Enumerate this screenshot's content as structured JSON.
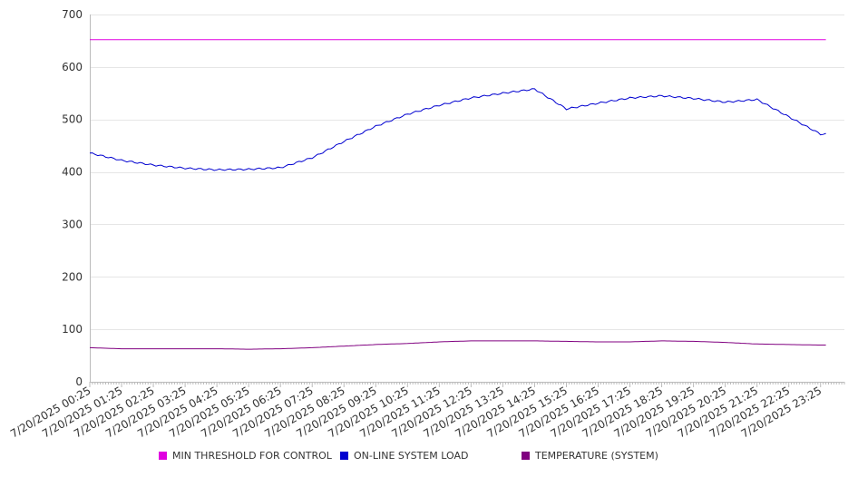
{
  "chart_data": {
    "type": "line",
    "title": "",
    "xlabel": "",
    "ylabel": "",
    "ylim": [
      0,
      700
    ],
    "yticks": [
      0,
      100,
      200,
      300,
      400,
      500,
      600,
      700
    ],
    "grid": "horizontal",
    "legend_position": "bottom",
    "x": [
      "7/20/2025 00:25",
      "7/20/2025 01:25",
      "7/20/2025 02:25",
      "7/20/2025 03:25",
      "7/20/2025 04:25",
      "7/20/2025 05:25",
      "7/20/2025 06:25",
      "7/20/2025 07:25",
      "7/20/2025 08:25",
      "7/20/2025 09:25",
      "7/20/2025 10:25",
      "7/20/2025 11:25",
      "7/20/2025 12:25",
      "7/20/2025 13:25",
      "7/20/2025 14:25",
      "7/20/2025 15:25",
      "7/20/2025 16:25",
      "7/20/2025 17:25",
      "7/20/2025 18:25",
      "7/20/2025 19:25",
      "7/20/2025 20:25",
      "7/20/2025 21:25",
      "7/20/2025 22:25",
      "7/20/2025 23:25"
    ],
    "series": [
      {
        "name": "MIN THRESHOLD FOR CONTROL",
        "color": "#e000e0",
        "values": [
          652,
          652,
          652,
          652,
          652,
          652,
          652,
          652,
          652,
          652,
          652,
          652,
          652,
          652,
          652,
          652,
          652,
          652,
          652,
          652,
          652,
          652,
          652,
          652
        ]
      },
      {
        "name": "ON-LINE SYSTEM LOAD",
        "color": "#0000d0",
        "values": [
          436,
          422,
          413,
          407,
          404,
          405,
          408,
          427,
          458,
          487,
          510,
          527,
          541,
          550,
          558,
          520,
          531,
          541,
          545,
          540,
          533,
          538,
          505,
          472
        ]
      },
      {
        "name": "TEMPERATURE (SYSTEM)",
        "color": "#800080",
        "values": [
          65,
          63,
          63,
          63,
          63,
          62,
          63,
          65,
          68,
          71,
          73,
          76,
          78,
          78,
          78,
          77,
          76,
          76,
          78,
          77,
          75,
          72,
          71,
          70
        ]
      }
    ]
  }
}
